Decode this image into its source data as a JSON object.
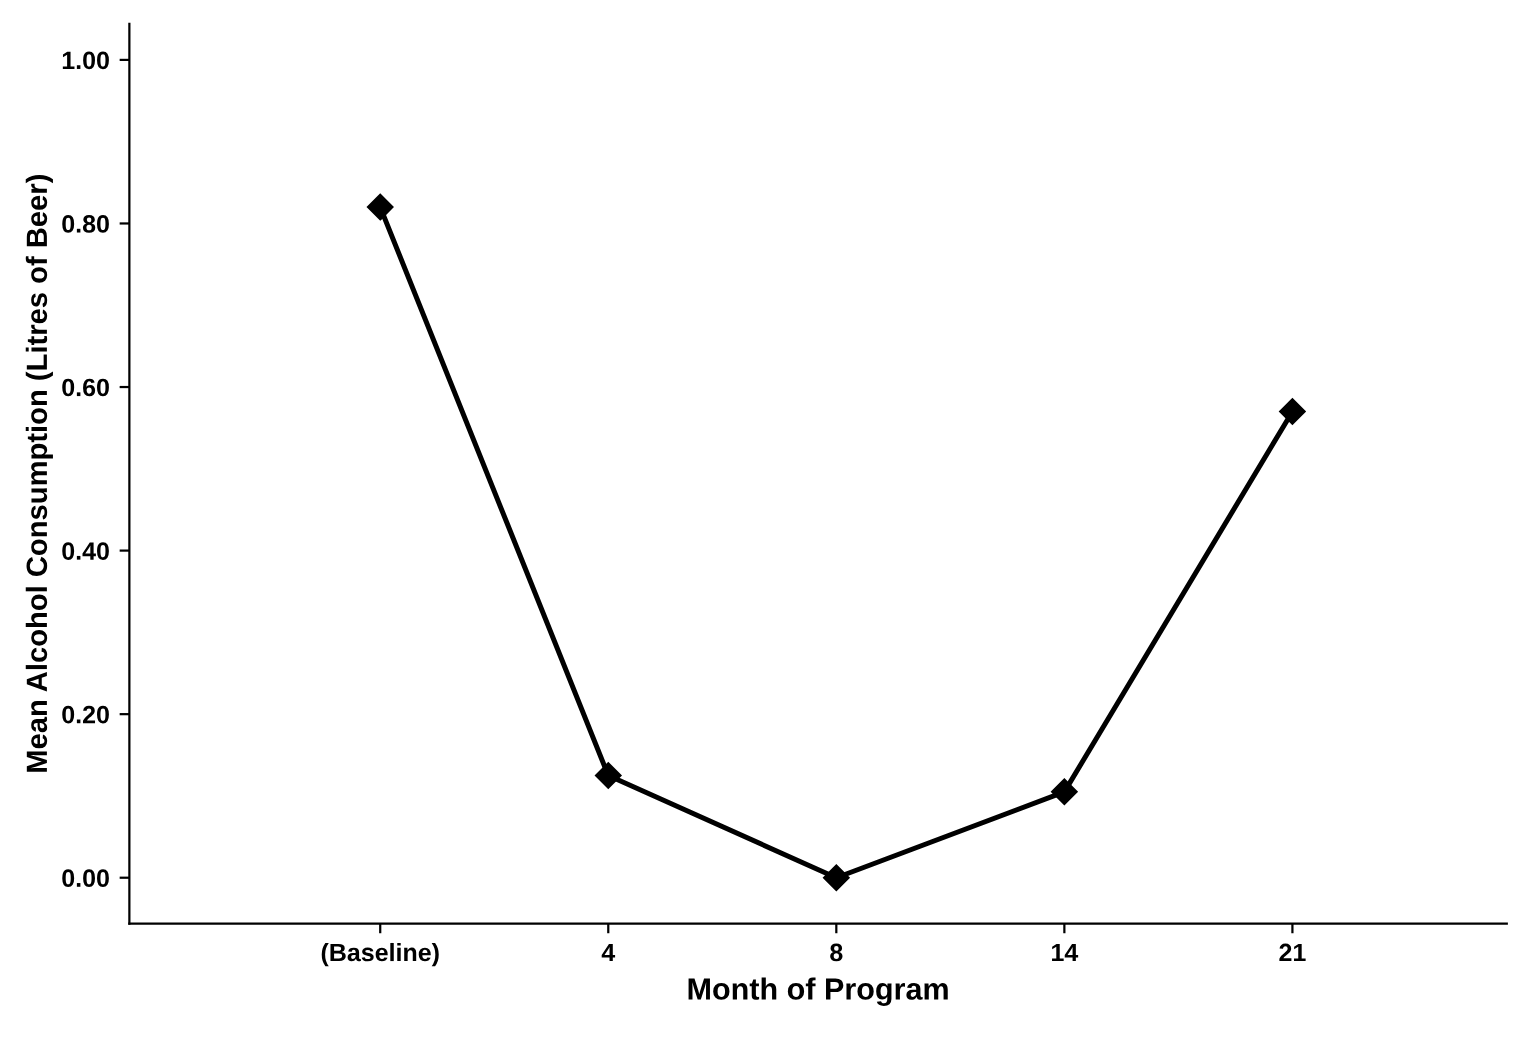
{
  "chart_data": {
    "type": "line",
    "xlabel": "Month of Program",
    "ylabel": "Mean Alcohol Consumption (Litres of Beer)",
    "categories": [
      "(Baseline)",
      "4",
      "8",
      "14",
      "21"
    ],
    "series": [
      {
        "color": "#000000",
        "values": [
          0.82,
          0.125,
          0.0,
          0.105,
          0.57
        ]
      }
    ],
    "ylim": [
      -0.056,
      1.044
    ],
    "yticks": [
      {
        "value": 0,
        "label": "0.00"
      },
      {
        "value": 0.2,
        "label": "0.20"
      },
      {
        "value": 0.4,
        "label": "0.40"
      },
      {
        "value": 0.6,
        "label": "0.60"
      },
      {
        "value": 0.8,
        "label": "0.80"
      },
      {
        "value": 1.0,
        "label": "1.00"
      }
    ],
    "marker": "diamond",
    "line_style": "solid",
    "grid": false,
    "legend": false
  }
}
